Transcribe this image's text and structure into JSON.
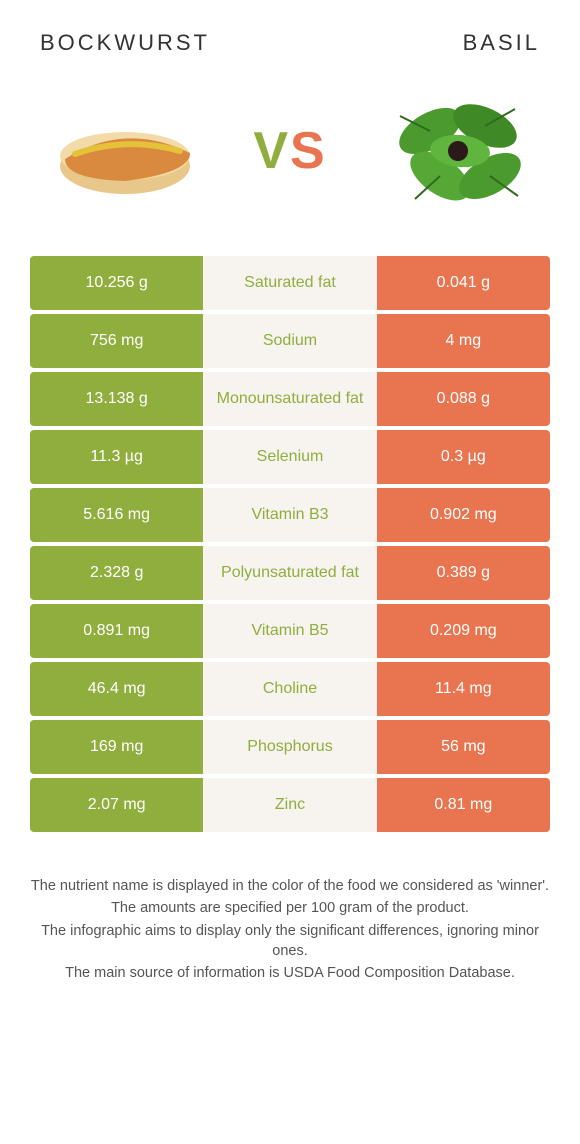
{
  "colors": {
    "green": "#8fae3e",
    "orange": "#e8754f",
    "mid_bg": "#f7f3ee",
    "label_green": "#8fae3e",
    "label_orange": "#e8754f"
  },
  "header": {
    "left_title": "BOCKWURST",
    "right_title": "BASIL"
  },
  "vs": {
    "v": "V",
    "s": "S"
  },
  "rows": [
    {
      "left": "10.256 g",
      "label": "Saturated fat",
      "right": "0.041 g",
      "winner": "left"
    },
    {
      "left": "756 mg",
      "label": "Sodium",
      "right": "4 mg",
      "winner": "left"
    },
    {
      "left": "13.138 g",
      "label": "Monounsaturated fat",
      "right": "0.088 g",
      "winner": "left"
    },
    {
      "left": "11.3 µg",
      "label": "Selenium",
      "right": "0.3 µg",
      "winner": "left"
    },
    {
      "left": "5.616 mg",
      "label": "Vitamin B3",
      "right": "0.902 mg",
      "winner": "left"
    },
    {
      "left": "2.328 g",
      "label": "Polyunsaturated fat",
      "right": "0.389 g",
      "winner": "left"
    },
    {
      "left": "0.891 mg",
      "label": "Vitamin B5",
      "right": "0.209 mg",
      "winner": "left"
    },
    {
      "left": "46.4 mg",
      "label": "Choline",
      "right": "11.4 mg",
      "winner": "left"
    },
    {
      "left": "169 mg",
      "label": "Phosphorus",
      "right": "56 mg",
      "winner": "left"
    },
    {
      "left": "2.07 mg",
      "label": "Zinc",
      "right": "0.81 mg",
      "winner": "left"
    }
  ],
  "footer": {
    "l1": "The nutrient name is displayed in the color of the food we considered as 'winner'.",
    "l2": "The amounts are specified per 100 gram of the product.",
    "l3": "The infographic aims to display only the significant differences, ignoring minor ones.",
    "l4": "The main source of information is USDA Food Composition Database."
  }
}
